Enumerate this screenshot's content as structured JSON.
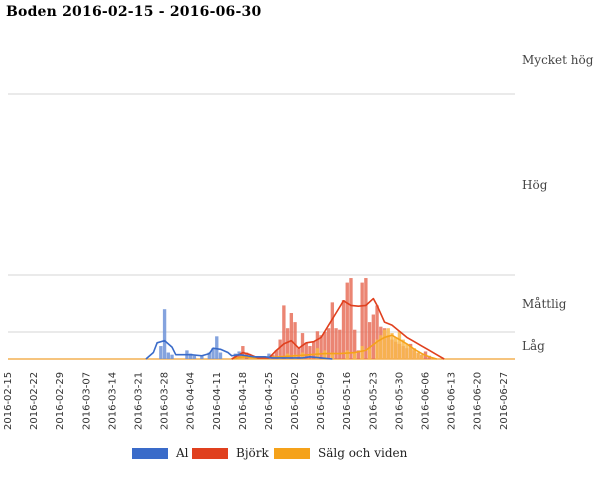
{
  "chart_data": {
    "type": "bar",
    "title": "Boden 2016-02-15 - 2016-06-30",
    "xlabel": "",
    "ylabel": "",
    "x_start": "2016-02-15",
    "x_end": "2016-06-30",
    "x_tick_labels": [
      "2016-02-15",
      "2016-02-22",
      "2016-02-29",
      "2016-03-07",
      "2016-03-14",
      "2016-03-21",
      "2016-03-28",
      "2016-04-04",
      "2016-04-11",
      "2016-04-18",
      "2016-04-25",
      "2016-05-02",
      "2016-05-09",
      "2016-05-16",
      "2016-05-23",
      "2016-05-30",
      "2016-06-06",
      "2016-06-13",
      "2016-06-20",
      "2016-06-27"
    ],
    "level_labels": [
      {
        "name": "Låg",
        "value": 0
      },
      {
        "name": "Måttlig",
        "value": 25
      },
      {
        "name": "Hög",
        "value": 100
      },
      {
        "name": "Mycket hög",
        "value": 1000
      }
    ],
    "bar_and_line": "daily bars with moving-average lines",
    "grid": true,
    "legend_position": "bottom",
    "series": [
      {
        "name": "Al",
        "color": "#3a6bc9",
        "bar_color": "#6f93d8",
        "values": [
          {
            "date": "2016-03-27",
            "v": 12
          },
          {
            "date": "2016-03-28",
            "v": 55
          },
          {
            "date": "2016-03-29",
            "v": 6
          },
          {
            "date": "2016-03-30",
            "v": 4
          },
          {
            "date": "2016-04-03",
            "v": 8
          },
          {
            "date": "2016-04-04",
            "v": 5
          },
          {
            "date": "2016-04-05",
            "v": 3
          },
          {
            "date": "2016-04-07",
            "v": 3
          },
          {
            "date": "2016-04-09",
            "v": 6
          },
          {
            "date": "2016-04-10",
            "v": 10
          },
          {
            "date": "2016-04-11",
            "v": 21
          },
          {
            "date": "2016-04-12",
            "v": 6
          },
          {
            "date": "2016-04-16",
            "v": 5
          },
          {
            "date": "2016-04-17",
            "v": 7
          },
          {
            "date": "2016-04-18",
            "v": 6
          },
          {
            "date": "2016-04-19",
            "v": 3
          },
          {
            "date": "2016-04-25",
            "v": 5
          }
        ],
        "trend": [
          {
            "date": "2016-03-23",
            "v": 0
          },
          {
            "date": "2016-03-25",
            "v": 6
          },
          {
            "date": "2016-03-26",
            "v": 15
          },
          {
            "date": "2016-03-28",
            "v": 17
          },
          {
            "date": "2016-03-30",
            "v": 11
          },
          {
            "date": "2016-03-31",
            "v": 4
          },
          {
            "date": "2016-04-02",
            "v": 4
          },
          {
            "date": "2016-04-04",
            "v": 4
          },
          {
            "date": "2016-04-07",
            "v": 3
          },
          {
            "date": "2016-04-09",
            "v": 5
          },
          {
            "date": "2016-04-10",
            "v": 10
          },
          {
            "date": "2016-04-12",
            "v": 9
          },
          {
            "date": "2016-04-14",
            "v": 6
          },
          {
            "date": "2016-04-15",
            "v": 3
          },
          {
            "date": "2016-04-17",
            "v": 4
          },
          {
            "date": "2016-04-19",
            "v": 3
          },
          {
            "date": "2016-04-21",
            "v": 2
          },
          {
            "date": "2016-04-24",
            "v": 2
          },
          {
            "date": "2016-04-26",
            "v": 1
          },
          {
            "date": "2016-04-30",
            "v": 1
          },
          {
            "date": "2016-05-04",
            "v": 1
          },
          {
            "date": "2016-05-06",
            "v": 2
          },
          {
            "date": "2016-05-09",
            "v": 1
          },
          {
            "date": "2016-05-12",
            "v": 0
          }
        ]
      },
      {
        "name": "Björk",
        "color": "#e0401e",
        "bar_color": "#e8705a",
        "values": [
          {
            "date": "2016-04-17",
            "v": 4
          },
          {
            "date": "2016-04-18",
            "v": 12
          },
          {
            "date": "2016-04-19",
            "v": 6
          },
          {
            "date": "2016-04-20",
            "v": 3
          },
          {
            "date": "2016-04-26",
            "v": 4
          },
          {
            "date": "2016-04-27",
            "v": 8
          },
          {
            "date": "2016-04-28",
            "v": 18
          },
          {
            "date": "2016-04-29",
            "v": 60
          },
          {
            "date": "2016-04-30",
            "v": 30
          },
          {
            "date": "2016-05-01",
            "v": 50
          },
          {
            "date": "2016-05-02",
            "v": 38
          },
          {
            "date": "2016-05-03",
            "v": 10
          },
          {
            "date": "2016-05-04",
            "v": 24
          },
          {
            "date": "2016-05-05",
            "v": 15
          },
          {
            "date": "2016-05-06",
            "v": 12
          },
          {
            "date": "2016-05-07",
            "v": 16
          },
          {
            "date": "2016-05-08",
            "v": 26
          },
          {
            "date": "2016-05-09",
            "v": 22
          },
          {
            "date": "2016-05-10",
            "v": 25
          },
          {
            "date": "2016-05-11",
            "v": 30
          },
          {
            "date": "2016-05-12",
            "v": 64
          },
          {
            "date": "2016-05-13",
            "v": 30
          },
          {
            "date": "2016-05-14",
            "v": 28
          },
          {
            "date": "2016-05-15",
            "v": 67
          },
          {
            "date": "2016-05-16",
            "v": 90
          },
          {
            "date": "2016-05-17",
            "v": 96
          },
          {
            "date": "2016-05-18",
            "v": 28
          },
          {
            "date": "2016-05-19",
            "v": 8
          },
          {
            "date": "2016-05-20",
            "v": 90
          },
          {
            "date": "2016-05-21",
            "v": 96
          },
          {
            "date": "2016-05-22",
            "v": 38
          },
          {
            "date": "2016-05-23",
            "v": 48
          },
          {
            "date": "2016-05-24",
            "v": 60
          },
          {
            "date": "2016-05-25",
            "v": 32
          },
          {
            "date": "2016-05-26",
            "v": 30
          },
          {
            "date": "2016-05-27",
            "v": 22
          },
          {
            "date": "2016-05-28",
            "v": 18
          },
          {
            "date": "2016-05-29",
            "v": 16
          },
          {
            "date": "2016-05-30",
            "v": 14
          },
          {
            "date": "2016-05-31",
            "v": 12
          },
          {
            "date": "2016-06-01",
            "v": 10
          },
          {
            "date": "2016-06-02",
            "v": 14
          },
          {
            "date": "2016-06-03",
            "v": 8
          },
          {
            "date": "2016-06-04",
            "v": 6
          },
          {
            "date": "2016-06-05",
            "v": 4
          },
          {
            "date": "2016-06-06",
            "v": 7
          },
          {
            "date": "2016-06-07",
            "v": 3
          }
        ],
        "trend": [
          {
            "date": "2016-04-15",
            "v": 0
          },
          {
            "date": "2016-04-17",
            "v": 4
          },
          {
            "date": "2016-04-18",
            "v": 6
          },
          {
            "date": "2016-04-20",
            "v": 4
          },
          {
            "date": "2016-04-22",
            "v": 1
          },
          {
            "date": "2016-04-25",
            "v": 1
          },
          {
            "date": "2016-04-27",
            "v": 8
          },
          {
            "date": "2016-04-29",
            "v": 14
          },
          {
            "date": "2016-05-01",
            "v": 17
          },
          {
            "date": "2016-05-03",
            "v": 10
          },
          {
            "date": "2016-05-05",
            "v": 15
          },
          {
            "date": "2016-05-07",
            "v": 16
          },
          {
            "date": "2016-05-09",
            "v": 20
          },
          {
            "date": "2016-05-11",
            "v": 34
          },
          {
            "date": "2016-05-13",
            "v": 50
          },
          {
            "date": "2016-05-15",
            "v": 66
          },
          {
            "date": "2016-05-17",
            "v": 60
          },
          {
            "date": "2016-05-19",
            "v": 59
          },
          {
            "date": "2016-05-21",
            "v": 60
          },
          {
            "date": "2016-05-23",
            "v": 69
          },
          {
            "date": "2016-05-24",
            "v": 60
          },
          {
            "date": "2016-05-26",
            "v": 38
          },
          {
            "date": "2016-05-28",
            "v": 34
          },
          {
            "date": "2016-05-30",
            "v": 26
          },
          {
            "date": "2016-06-01",
            "v": 20
          },
          {
            "date": "2016-06-03",
            "v": 16
          },
          {
            "date": "2016-06-05",
            "v": 12
          },
          {
            "date": "2016-06-07",
            "v": 8
          },
          {
            "date": "2016-06-09",
            "v": 4
          },
          {
            "date": "2016-06-11",
            "v": 0
          }
        ]
      },
      {
        "name": "Sälg och viden",
        "color": "#f5a21a",
        "bar_color": "#f9b94a",
        "values": [
          {
            "date": "2016-04-17",
            "v": 2
          },
          {
            "date": "2016-04-18",
            "v": 4
          },
          {
            "date": "2016-04-20",
            "v": 3
          },
          {
            "date": "2016-04-28",
            "v": 3
          },
          {
            "date": "2016-04-30",
            "v": 5
          },
          {
            "date": "2016-05-02",
            "v": 4
          },
          {
            "date": "2016-05-04",
            "v": 6
          },
          {
            "date": "2016-05-08",
            "v": 10
          },
          {
            "date": "2016-05-10",
            "v": 8
          },
          {
            "date": "2016-05-12",
            "v": 6
          },
          {
            "date": "2016-05-16",
            "v": 8
          },
          {
            "date": "2016-05-18",
            "v": 6
          },
          {
            "date": "2016-05-20",
            "v": 12
          },
          {
            "date": "2016-05-22",
            "v": 10
          },
          {
            "date": "2016-05-24",
            "v": 18
          },
          {
            "date": "2016-05-25",
            "v": 22
          },
          {
            "date": "2016-05-26",
            "v": 28
          },
          {
            "date": "2016-05-27",
            "v": 30
          },
          {
            "date": "2016-05-28",
            "v": 24
          },
          {
            "date": "2016-05-29",
            "v": 20
          },
          {
            "date": "2016-05-30",
            "v": 26
          },
          {
            "date": "2016-05-31",
            "v": 18
          },
          {
            "date": "2016-06-01",
            "v": 14
          },
          {
            "date": "2016-06-02",
            "v": 12
          },
          {
            "date": "2016-06-03",
            "v": 10
          },
          {
            "date": "2016-06-04",
            "v": 6
          },
          {
            "date": "2016-06-05",
            "v": 4
          }
        ],
        "trend": [
          {
            "date": "2016-04-15",
            "v": 0
          },
          {
            "date": "2016-04-18",
            "v": 2
          },
          {
            "date": "2016-04-22",
            "v": 1
          },
          {
            "date": "2016-04-28",
            "v": 2
          },
          {
            "date": "2016-05-02",
            "v": 3
          },
          {
            "date": "2016-05-06",
            "v": 4
          },
          {
            "date": "2016-05-10",
            "v": 5
          },
          {
            "date": "2016-05-14",
            "v": 5
          },
          {
            "date": "2016-05-18",
            "v": 6
          },
          {
            "date": "2016-05-21",
            "v": 8
          },
          {
            "date": "2016-05-24",
            "v": 16
          },
          {
            "date": "2016-05-26",
            "v": 20
          },
          {
            "date": "2016-05-28",
            "v": 22
          },
          {
            "date": "2016-05-30",
            "v": 18
          },
          {
            "date": "2016-06-01",
            "v": 14
          },
          {
            "date": "2016-06-03",
            "v": 9
          },
          {
            "date": "2016-06-05",
            "v": 5
          },
          {
            "date": "2016-06-07",
            "v": 2
          },
          {
            "date": "2016-06-09",
            "v": 0
          }
        ]
      }
    ]
  }
}
